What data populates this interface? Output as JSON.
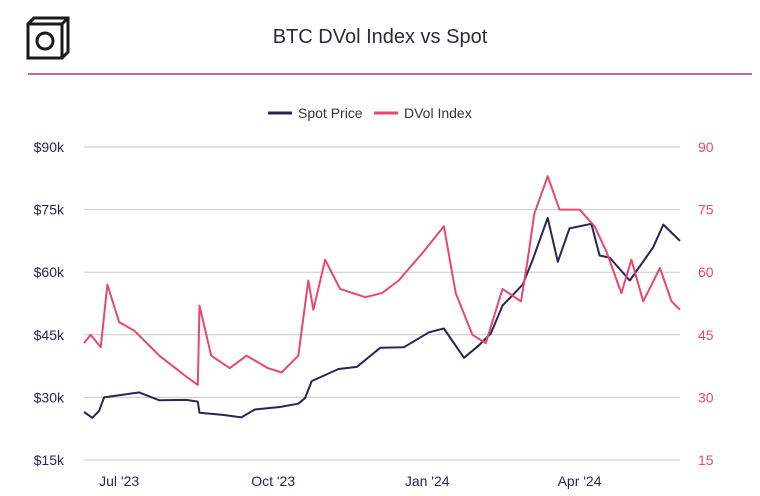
{
  "title": "BTC DVol Index vs Spot",
  "colors": {
    "spot": "#2a2459",
    "dvol": "#e8476e",
    "grid": "#c8c8c8",
    "rule": "#b46ad6",
    "left_axis_text": "#2a2459",
    "right_axis_text": "#e8476e",
    "x_axis_text": "#2a2459"
  },
  "logo": {
    "icon": "box-logo-icon"
  },
  "chart_data": {
    "type": "line",
    "title": "BTC DVol Index vs Spot",
    "legend": {
      "position": "top-center",
      "entries": [
        "Spot Price",
        "DVol Index"
      ]
    },
    "grid": true,
    "x_axis": {
      "ticks": [
        "Jul '23",
        "Oct '23",
        "Jan '24",
        "Apr '24"
      ],
      "tick_dates": [
        "2023-07-01",
        "2023-10-01",
        "2024-01-01",
        "2024-04-01"
      ],
      "range": [
        "2023-06-10",
        "2024-05-31"
      ]
    },
    "y_left": {
      "ticks": [
        "$90k",
        "$75k",
        "$60k",
        "$45k",
        "$30k",
        "$15k"
      ],
      "range": [
        15000,
        90000
      ]
    },
    "y_right": {
      "ticks": [
        "90",
        "75",
        "60",
        "45",
        "30",
        "15"
      ],
      "range": [
        15,
        90
      ]
    },
    "series": [
      {
        "name": "Spot Price",
        "axis": "left",
        "points": [
          [
            "2023-06-10",
            26500
          ],
          [
            "2023-06-15",
            25100
          ],
          [
            "2023-06-19",
            26800
          ],
          [
            "2023-06-22",
            30000
          ],
          [
            "2023-07-01",
            30500
          ],
          [
            "2023-07-13",
            31200
          ],
          [
            "2023-07-25",
            29300
          ],
          [
            "2023-08-10",
            29400
          ],
          [
            "2023-08-17",
            29000
          ],
          [
            "2023-08-18",
            26300
          ],
          [
            "2023-09-01",
            25800
          ],
          [
            "2023-09-12",
            25200
          ],
          [
            "2023-09-20",
            27100
          ],
          [
            "2023-10-05",
            27700
          ],
          [
            "2023-10-16",
            28500
          ],
          [
            "2023-10-20",
            29800
          ],
          [
            "2023-10-24",
            33900
          ],
          [
            "2023-11-09",
            36800
          ],
          [
            "2023-11-20",
            37300
          ],
          [
            "2023-12-04",
            41900
          ],
          [
            "2023-12-18",
            42000
          ],
          [
            "2024-01-02",
            45600
          ],
          [
            "2024-01-11",
            46500
          ],
          [
            "2024-01-23",
            39500
          ],
          [
            "2024-02-01",
            42500
          ],
          [
            "2024-02-08",
            45300
          ],
          [
            "2024-02-15",
            52000
          ],
          [
            "2024-02-27",
            57000
          ],
          [
            "2024-03-04",
            63000
          ],
          [
            "2024-03-13",
            73000
          ],
          [
            "2024-03-19",
            62500
          ],
          [
            "2024-03-26",
            70500
          ],
          [
            "2024-04-08",
            71600
          ],
          [
            "2024-04-13",
            64000
          ],
          [
            "2024-04-19",
            63500
          ],
          [
            "2024-05-01",
            58000
          ],
          [
            "2024-05-08",
            62000
          ],
          [
            "2024-05-15",
            66000
          ],
          [
            "2024-05-21",
            71400
          ],
          [
            "2024-05-31",
            67500
          ]
        ]
      },
      {
        "name": "DVol Index",
        "axis": "right",
        "points": [
          [
            "2023-06-10",
            43
          ],
          [
            "2023-06-14",
            45
          ],
          [
            "2023-06-20",
            42
          ],
          [
            "2023-06-24",
            57
          ],
          [
            "2023-07-01",
            48
          ],
          [
            "2023-07-10",
            46
          ],
          [
            "2023-07-25",
            40
          ],
          [
            "2023-08-10",
            35
          ],
          [
            "2023-08-17",
            33
          ],
          [
            "2023-08-18",
            52
          ],
          [
            "2023-08-25",
            40
          ],
          [
            "2023-09-05",
            37
          ],
          [
            "2023-09-15",
            40
          ],
          [
            "2023-09-28",
            37
          ],
          [
            "2023-10-06",
            36
          ],
          [
            "2023-10-16",
            40
          ],
          [
            "2023-10-22",
            58
          ],
          [
            "2023-10-25",
            51
          ],
          [
            "2023-11-01",
            63
          ],
          [
            "2023-11-10",
            56
          ],
          [
            "2023-11-25",
            54
          ],
          [
            "2023-12-05",
            55
          ],
          [
            "2023-12-15",
            58
          ],
          [
            "2023-12-30",
            65
          ],
          [
            "2024-01-11",
            71
          ],
          [
            "2024-01-18",
            55
          ],
          [
            "2024-01-28",
            45
          ],
          [
            "2024-02-05",
            43
          ],
          [
            "2024-02-15",
            56
          ],
          [
            "2024-02-26",
            53
          ],
          [
            "2024-03-01",
            63
          ],
          [
            "2024-03-05",
            74
          ],
          [
            "2024-03-13",
            83
          ],
          [
            "2024-03-20",
            75
          ],
          [
            "2024-04-01",
            75
          ],
          [
            "2024-04-10",
            71
          ],
          [
            "2024-04-17",
            65
          ],
          [
            "2024-04-26",
            55
          ],
          [
            "2024-05-02",
            63
          ],
          [
            "2024-05-09",
            53
          ],
          [
            "2024-05-19",
            61
          ],
          [
            "2024-05-26",
            53
          ],
          [
            "2024-05-31",
            51
          ]
        ]
      }
    ]
  }
}
